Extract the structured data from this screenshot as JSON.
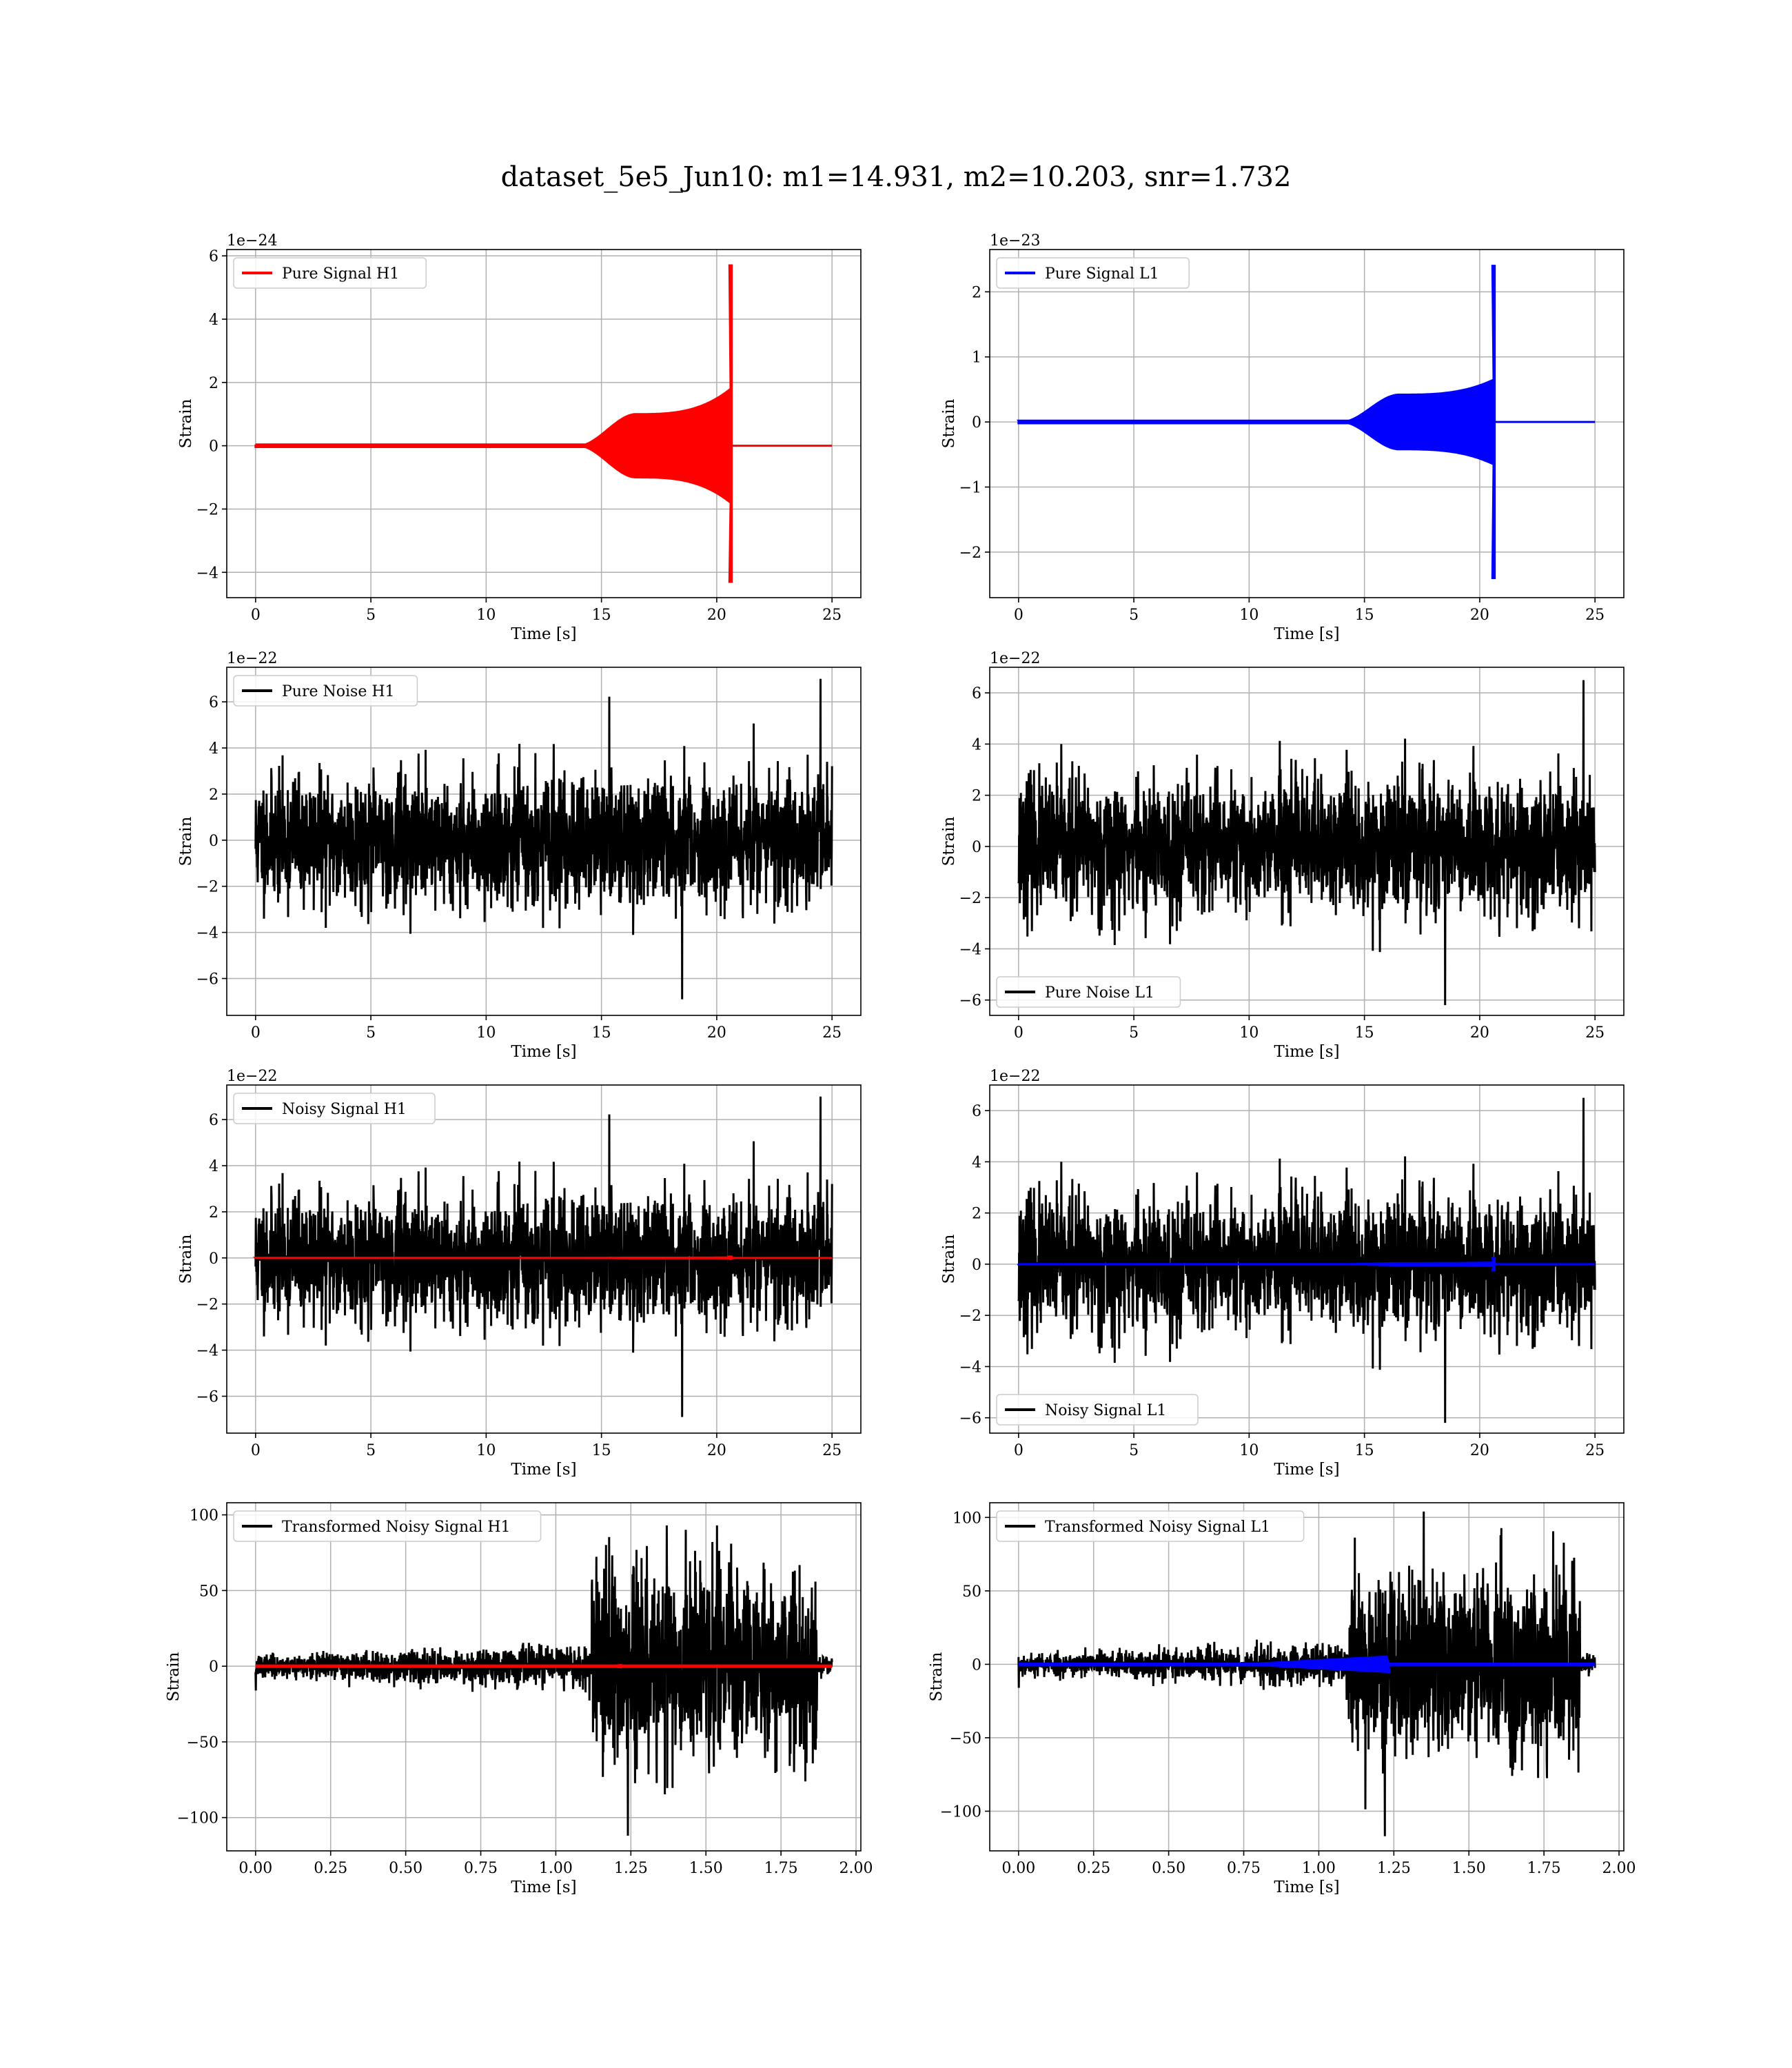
{
  "figure": {
    "title": "dataset_5e5_Jun10: m1=14.931, m2=10.203, snr=1.732"
  },
  "chart_data": [
    {
      "id": "p1",
      "type": "line",
      "xlabel": "Time [s]",
      "ylabel": "Strain",
      "offset": "1e−24",
      "xlim": [
        -1.25,
        26.25
      ],
      "ylim": [
        -4.8,
        6.2
      ],
      "xticks": [
        0,
        5,
        10,
        15,
        20,
        25
      ],
      "xtick_labels": [
        "0",
        "5",
        "10",
        "15",
        "20",
        "25"
      ],
      "yticks": [
        -4,
        -2,
        0,
        2,
        4,
        6
      ],
      "ytick_labels": [
        "−4",
        "−2",
        "0",
        "2",
        "4",
        "6"
      ],
      "grid": true,
      "legend_position": "upper left",
      "series": [
        {
          "name": "Pure Signal H1",
          "color": "#ff0000",
          "kind": "chirp",
          "t_start": 0,
          "t_end": 25,
          "t_merge": 20.6,
          "t_onset": 16.5,
          "pre_amp": 1.0,
          "merge_amp": 1.8,
          "peak_pos": 5.7,
          "peak_neg": -4.3
        }
      ]
    },
    {
      "id": "p2",
      "type": "line",
      "xlabel": "Time [s]",
      "ylabel": "Strain",
      "offset": "1e−23",
      "xlim": [
        -1.25,
        26.25
      ],
      "ylim": [
        -2.7,
        2.65
      ],
      "xticks": [
        0,
        5,
        10,
        15,
        20,
        25
      ],
      "xtick_labels": [
        "0",
        "5",
        "10",
        "15",
        "20",
        "25"
      ],
      "yticks": [
        -2,
        -1,
        0,
        1,
        2
      ],
      "ytick_labels": [
        "−2",
        "−1",
        "0",
        "1",
        "2"
      ],
      "grid": true,
      "legend_position": "upper left",
      "series": [
        {
          "name": "Pure Signal L1",
          "color": "#0000ff",
          "kind": "chirp",
          "t_start": 0,
          "t_end": 25,
          "t_merge": 20.6,
          "t_onset": 16.5,
          "pre_amp": 0.42,
          "merge_amp": 0.65,
          "peak_pos": 2.4,
          "peak_neg": -2.4
        }
      ]
    },
    {
      "id": "p3",
      "type": "line",
      "xlabel": "Time [s]",
      "ylabel": "Strain",
      "offset": "1e−22",
      "xlim": [
        -1.25,
        26.25
      ],
      "ylim": [
        -7.6,
        7.5
      ],
      "xticks": [
        0,
        5,
        10,
        15,
        20,
        25
      ],
      "xtick_labels": [
        "0",
        "5",
        "10",
        "15",
        "20",
        "25"
      ],
      "yticks": [
        -6,
        -4,
        -2,
        0,
        2,
        4,
        6
      ],
      "ytick_labels": [
        "−6",
        "−4",
        "−2",
        "0",
        "2",
        "4",
        "6"
      ],
      "grid": true,
      "legend_position": "upper left",
      "series": [
        {
          "name": "Pure Noise H1",
          "color": "#000000",
          "kind": "noise",
          "t_start": 0,
          "t_end": 25,
          "sigma": 1.35,
          "max": 7.0,
          "min": -6.9,
          "seed": 11
        }
      ]
    },
    {
      "id": "p4",
      "type": "line",
      "xlabel": "Time [s]",
      "ylabel": "Strain",
      "offset": "1e−22",
      "xlim": [
        -1.25,
        26.25
      ],
      "ylim": [
        -6.6,
        7.0
      ],
      "xticks": [
        0,
        5,
        10,
        15,
        20,
        25
      ],
      "xtick_labels": [
        "0",
        "5",
        "10",
        "15",
        "20",
        "25"
      ],
      "yticks": [
        -6,
        -4,
        -2,
        0,
        2,
        4,
        6
      ],
      "ytick_labels": [
        "−6",
        "−4",
        "−2",
        "0",
        "2",
        "4",
        "6"
      ],
      "grid": true,
      "legend_position": "lower left",
      "series": [
        {
          "name": "Pure Noise L1",
          "color": "#000000",
          "kind": "noise",
          "t_start": 0,
          "t_end": 25,
          "sigma": 1.3,
          "max": 6.5,
          "min": -6.2,
          "seed": 23
        }
      ]
    },
    {
      "id": "p5",
      "type": "line",
      "xlabel": "Time [s]",
      "ylabel": "Strain",
      "offset": "1e−22",
      "xlim": [
        -1.25,
        26.25
      ],
      "ylim": [
        -7.6,
        7.5
      ],
      "xticks": [
        0,
        5,
        10,
        15,
        20,
        25
      ],
      "xtick_labels": [
        "0",
        "5",
        "10",
        "15",
        "20",
        "25"
      ],
      "yticks": [
        -6,
        -4,
        -2,
        0,
        2,
        4,
        6
      ],
      "ytick_labels": [
        "−6",
        "−4",
        "−2",
        "0",
        "2",
        "4",
        "6"
      ],
      "grid": true,
      "legend_position": "upper left",
      "series": [
        {
          "name": "Noisy Signal H1",
          "color": "#000000",
          "kind": "noise",
          "t_start": 0,
          "t_end": 25,
          "sigma": 1.35,
          "max": 7.0,
          "min": -6.9,
          "seed": 11
        },
        {
          "name": "",
          "color": "#ff0000",
          "kind": "chirp",
          "t_start": 0,
          "t_end": 25,
          "t_merge": 20.6,
          "t_onset": 16.5,
          "pre_amp": 0.01,
          "merge_amp": 0.018,
          "peak_pos": 0.057,
          "peak_neg": -0.043
        }
      ]
    },
    {
      "id": "p6",
      "type": "line",
      "xlabel": "Time [s]",
      "ylabel": "Strain",
      "offset": "1e−22",
      "xlim": [
        -1.25,
        26.25
      ],
      "ylim": [
        -6.6,
        7.0
      ],
      "xticks": [
        0,
        5,
        10,
        15,
        20,
        25
      ],
      "xtick_labels": [
        "0",
        "5",
        "10",
        "15",
        "20",
        "25"
      ],
      "yticks": [
        -6,
        -4,
        -2,
        0,
        2,
        4,
        6
      ],
      "ytick_labels": [
        "−6",
        "−4",
        "−2",
        "0",
        "2",
        "4",
        "6"
      ],
      "grid": true,
      "legend_position": "lower left",
      "series": [
        {
          "name": "Noisy Signal L1",
          "color": "#000000",
          "kind": "noise",
          "t_start": 0,
          "t_end": 25,
          "sigma": 1.3,
          "max": 6.5,
          "min": -6.2,
          "seed": 23
        },
        {
          "name": "",
          "color": "#0000ff",
          "kind": "chirp",
          "t_start": 0,
          "t_end": 25,
          "t_merge": 20.6,
          "t_onset": 16.5,
          "pre_amp": 0.042,
          "merge_amp": 0.065,
          "peak_pos": 0.24,
          "peak_neg": -0.24
        }
      ]
    },
    {
      "id": "p7",
      "type": "line",
      "xlabel": "Time [s]",
      "ylabel": "Strain",
      "offset": "",
      "xlim": [
        -0.096,
        2.016
      ],
      "ylim": [
        -122,
        108
      ],
      "xticks": [
        0.0,
        0.25,
        0.5,
        0.75,
        1.0,
        1.25,
        1.5,
        1.75,
        2.0
      ],
      "xtick_labels": [
        "0.00",
        "0.25",
        "0.50",
        "0.75",
        "1.00",
        "1.25",
        "1.50",
        "1.75",
        "2.00"
      ],
      "yticks": [
        -100,
        -50,
        0,
        50,
        100
      ],
      "ytick_labels": [
        "−100",
        "−50",
        "0",
        "50",
        "100"
      ],
      "grid": true,
      "legend_position": "upper left",
      "series": [
        {
          "name": "Transformed Noisy Signal H1",
          "color": "#000000",
          "kind": "transformed",
          "t_start": 0,
          "t_end": 1.92,
          "t_jump": 1.12,
          "t_cut": 1.87,
          "low_sigma": 3.5,
          "ramp_to": 7,
          "high_sigma": 30,
          "max": 93,
          "min": -112,
          "seed": 37
        },
        {
          "name": "",
          "color": "#ff0000",
          "kind": "flat",
          "t_start": 0,
          "t_end": 1.92,
          "t_blip": 1.22,
          "blip_amp": 1.5
        }
      ]
    },
    {
      "id": "p8",
      "type": "line",
      "xlabel": "Time [s]",
      "ylabel": "Strain",
      "offset": "",
      "xlim": [
        -0.096,
        2.016
      ],
      "ylim": [
        -127,
        110
      ],
      "xticks": [
        0.0,
        0.25,
        0.5,
        0.75,
        1.0,
        1.25,
        1.5,
        1.75,
        2.0
      ],
      "xtick_labels": [
        "0.00",
        "0.25",
        "0.50",
        "0.75",
        "1.00",
        "1.25",
        "1.50",
        "1.75",
        "2.00"
      ],
      "yticks": [
        -100,
        -50,
        0,
        50,
        100
      ],
      "ytick_labels": [
        "−100",
        "−50",
        "0",
        "50",
        "100"
      ],
      "grid": true,
      "legend_position": "upper left",
      "series": [
        {
          "name": "Transformed Noisy Signal L1",
          "color": "#000000",
          "kind": "transformed",
          "t_start": 0,
          "t_end": 1.92,
          "t_jump": 1.1,
          "t_cut": 1.87,
          "low_sigma": 3.5,
          "ramp_to": 7,
          "high_sigma": 30,
          "max": 104,
          "min": -117,
          "seed": 53
        },
        {
          "name": "",
          "color": "#0000ff",
          "kind": "wedge",
          "t_start": 0,
          "t_end": 1.92,
          "t_peak": 1.23,
          "peak_amp": 6
        }
      ]
    }
  ]
}
